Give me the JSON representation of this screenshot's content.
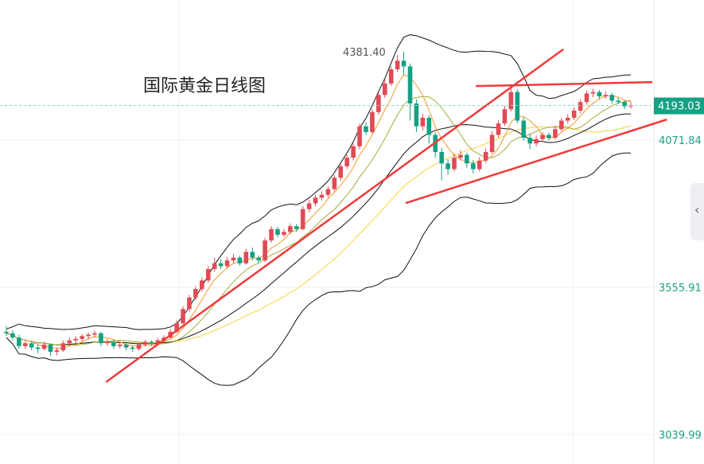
{
  "chart_data": {
    "type": "candlestick",
    "title": "国际黄金日线图",
    "ylim": [
      3039.99,
      4587.77
    ],
    "y_ticks": [
      3039.99,
      3555.91,
      4071.84,
      4587.77
    ],
    "current_price": 4193.03,
    "max_label": "4381.40",
    "colors": {
      "up": "#e04b55",
      "down": "#14a183",
      "ma_short": "#f39a2a",
      "ma_mid": "#a4ad3a",
      "ma_long": "#f7d23a",
      "boll": "#111111",
      "trendline": "#f03a3a",
      "price_label_bg": "#14a183"
    },
    "indicators": {
      "bollinger": {
        "period": 20,
        "k": 2
      },
      "ma": [
        5,
        10,
        30
      ]
    },
    "candles": [
      [
        3400,
        3420,
        3385,
        3395
      ],
      [
        3395,
        3405,
        3370,
        3380
      ],
      [
        3380,
        3390,
        3340,
        3350
      ],
      [
        3350,
        3370,
        3340,
        3360
      ],
      [
        3360,
        3368,
        3335,
        3345
      ],
      [
        3345,
        3355,
        3325,
        3340
      ],
      [
        3340,
        3365,
        3335,
        3355
      ],
      [
        3355,
        3360,
        3315,
        3330
      ],
      [
        3330,
        3345,
        3318,
        3335
      ],
      [
        3335,
        3370,
        3330,
        3360
      ],
      [
        3360,
        3380,
        3352,
        3370
      ],
      [
        3370,
        3385,
        3360,
        3375
      ],
      [
        3375,
        3392,
        3366,
        3385
      ],
      [
        3385,
        3398,
        3374,
        3390
      ],
      [
        3390,
        3405,
        3380,
        3395
      ],
      [
        3395,
        3400,
        3350,
        3360
      ],
      [
        3360,
        3375,
        3350,
        3365
      ],
      [
        3365,
        3372,
        3340,
        3350
      ],
      [
        3350,
        3365,
        3342,
        3355
      ],
      [
        3355,
        3362,
        3335,
        3345
      ],
      [
        3345,
        3352,
        3330,
        3340
      ],
      [
        3340,
        3362,
        3334,
        3355
      ],
      [
        3355,
        3372,
        3348,
        3365
      ],
      [
        3365,
        3370,
        3350,
        3360
      ],
      [
        3360,
        3378,
        3352,
        3370
      ],
      [
        3370,
        3388,
        3362,
        3380
      ],
      [
        3380,
        3410,
        3375,
        3400
      ],
      [
        3400,
        3440,
        3395,
        3430
      ],
      [
        3430,
        3490,
        3425,
        3480
      ],
      [
        3480,
        3530,
        3470,
        3520
      ],
      [
        3520,
        3560,
        3510,
        3550
      ],
      [
        3550,
        3590,
        3540,
        3580
      ],
      [
        3580,
        3630,
        3572,
        3620
      ],
      [
        3620,
        3660,
        3610,
        3640
      ],
      [
        3640,
        3655,
        3620,
        3630
      ],
      [
        3630,
        3662,
        3622,
        3650
      ],
      [
        3650,
        3672,
        3640,
        3660
      ],
      [
        3660,
        3668,
        3632,
        3640
      ],
      [
        3640,
        3690,
        3635,
        3680
      ],
      [
        3680,
        3695,
        3650,
        3660
      ],
      [
        3660,
        3668,
        3640,
        3650
      ],
      [
        3650,
        3730,
        3645,
        3720
      ],
      [
        3720,
        3770,
        3712,
        3760
      ],
      [
        3760,
        3768,
        3730,
        3740
      ],
      [
        3740,
        3760,
        3732,
        3750
      ],
      [
        3750,
        3780,
        3742,
        3770
      ],
      [
        3770,
        3778,
        3750,
        3760
      ],
      [
        3760,
        3840,
        3755,
        3830
      ],
      [
        3830,
        3862,
        3820,
        3850
      ],
      [
        3850,
        3880,
        3840,
        3870
      ],
      [
        3870,
        3892,
        3860,
        3880
      ],
      [
        3880,
        3910,
        3870,
        3900
      ],
      [
        3900,
        3950,
        3892,
        3940
      ],
      [
        3940,
        3990,
        3930,
        3980
      ],
      [
        3980,
        4020,
        3970,
        4010
      ],
      [
        4010,
        4060,
        4000,
        4050
      ],
      [
        4050,
        4130,
        4040,
        4120
      ],
      [
        4120,
        4135,
        4090,
        4100
      ],
      [
        4100,
        4180,
        4095,
        4170
      ],
      [
        4170,
        4240,
        4160,
        4230
      ],
      [
        4230,
        4285,
        4220,
        4270
      ],
      [
        4270,
        4330,
        4262,
        4320
      ],
      [
        4320,
        4370,
        4310,
        4350
      ],
      [
        4350,
        4381.4,
        4300,
        4330
      ],
      [
        4330,
        4340,
        4140,
        4200
      ],
      [
        4200,
        4215,
        4100,
        4120
      ],
      [
        4120,
        4165,
        4105,
        4150
      ],
      [
        4150,
        4160,
        4060,
        4090
      ],
      [
        4090,
        4100,
        4010,
        4030
      ],
      [
        4030,
        4045,
        3930,
        3990
      ],
      [
        3990,
        4005,
        3950,
        3970
      ],
      [
        3970,
        4025,
        3962,
        4010
      ],
      [
        4010,
        4035,
        4000,
        4020
      ],
      [
        4020,
        4028,
        3975,
        3990
      ],
      [
        3990,
        4002,
        3955,
        3970
      ],
      [
        3970,
        4012,
        3962,
        4000
      ],
      [
        4000,
        4042,
        3992,
        4030
      ],
      [
        4030,
        4102,
        4024,
        4090
      ],
      [
        4090,
        4142,
        4080,
        4130
      ],
      [
        4130,
        4192,
        4122,
        4180
      ],
      [
        4180,
        4265,
        4172,
        4240
      ],
      [
        4240,
        4250,
        4130,
        4140
      ],
      [
        4140,
        4152,
        4070,
        4080
      ],
      [
        4080,
        4095,
        4040,
        4060
      ],
      [
        4060,
        4088,
        4050,
        4075
      ],
      [
        4075,
        4100,
        4066,
        4090
      ],
      [
        4090,
        4098,
        4070,
        4080
      ],
      [
        4080,
        4122,
        4074,
        4110
      ],
      [
        4110,
        4150,
        4102,
        4140
      ],
      [
        4140,
        4162,
        4130,
        4150
      ],
      [
        4150,
        4186,
        4142,
        4175
      ],
      [
        4175,
        4215,
        4166,
        4205
      ],
      [
        4205,
        4246,
        4196,
        4235
      ],
      [
        4235,
        4252,
        4222,
        4240
      ],
      [
        4240,
        4248,
        4215,
        4225
      ],
      [
        4225,
        4242,
        4216,
        4230
      ],
      [
        4230,
        4238,
        4200,
        4210
      ],
      [
        4210,
        4222,
        4198,
        4205
      ],
      [
        4205,
        4212,
        4180,
        4190
      ],
      [
        4190,
        4205,
        4182,
        4193.03
      ]
    ],
    "trendlines": [
      {
        "from": [
          15.8,
          3224
        ],
        "to": [
          88.3,
          4390
        ]
      },
      {
        "from": [
          63.3,
          3851
        ],
        "to": [
          104.7,
          4144
        ]
      },
      {
        "from": [
          74.4,
          4261
        ],
        "to": [
          102.4,
          4275
        ]
      }
    ]
  }
}
